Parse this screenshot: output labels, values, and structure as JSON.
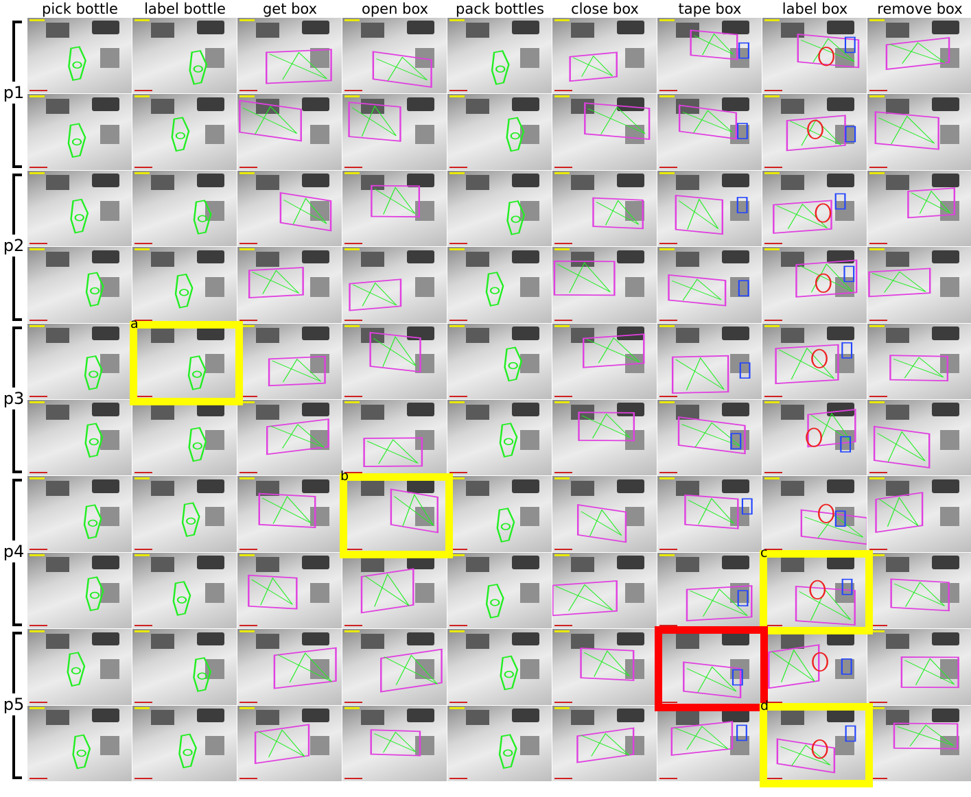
{
  "columns": [
    {
      "label": "pick bottle",
      "annotation": "bottle"
    },
    {
      "label": "label bottle",
      "annotation": "bottle"
    },
    {
      "label": "get box",
      "annotation": "box"
    },
    {
      "label": "open box",
      "annotation": "box"
    },
    {
      "label": "pack bottles",
      "annotation": "bottle"
    },
    {
      "label": "close box",
      "annotation": "box"
    },
    {
      "label": "tape box",
      "annotation": "box+tape"
    },
    {
      "label": "label box",
      "annotation": "box+label"
    },
    {
      "label": "remove box",
      "annotation": "box"
    }
  ],
  "rows": [
    {
      "label": "p1",
      "sub": 2
    },
    {
      "label": "p2",
      "sub": 2
    },
    {
      "label": "p3",
      "sub": 2
    },
    {
      "label": "p4",
      "sub": 2
    },
    {
      "label": "p5",
      "sub": 2
    }
  ],
  "highlights": [
    {
      "letter": "a",
      "color": "#ffff00",
      "row": 4,
      "col": 1
    },
    {
      "letter": "b",
      "color": "#ffff00",
      "row": 6,
      "col": 3
    },
    {
      "letter": "c",
      "color": "#ffff00",
      "row": 7,
      "col": 7
    },
    {
      "letter": "",
      "color": "#ff0000",
      "row": 8,
      "col": 6
    },
    {
      "letter": "d",
      "color": "#ffff00",
      "row": 9,
      "col": 7
    }
  ],
  "colors": {
    "bottle": "#22ee22",
    "box": "#e040e0",
    "tape": "#2244ff",
    "label": "#ee2222",
    "highlight_yellow": "#ffff00",
    "highlight_red": "#ff0000"
  }
}
